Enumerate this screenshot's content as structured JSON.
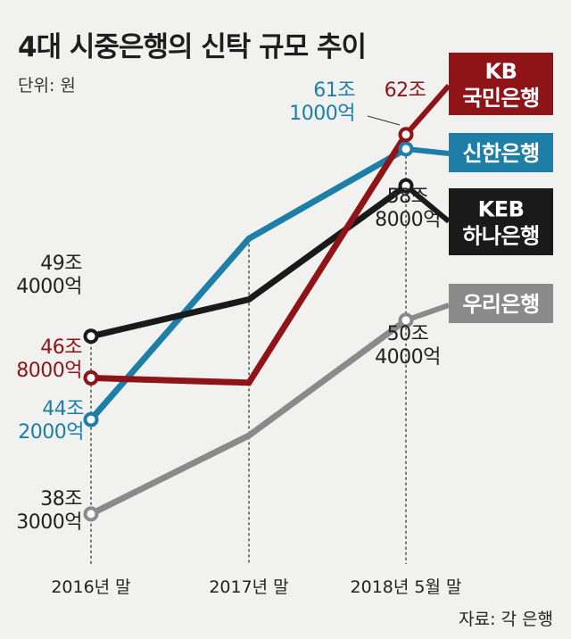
{
  "title": "4대 시중은행의 신탁 규모 추이",
  "unit_label": "단위: 원",
  "source": "자료: 각 은행",
  "chart_data": {
    "type": "line",
    "title": "4대 시중은행의 신탁 규모 추이",
    "unit": "원",
    "categories": [
      "2016년 말",
      "2017년 말",
      "2018년 5월 말"
    ],
    "ylim": [
      33,
      66
    ],
    "series": [
      {
        "name": "KB 국민은행",
        "legend_lines": [
          "KB",
          "국민은행"
        ],
        "color": "#8e1418",
        "values": [
          46.8,
          46.5,
          62.0
        ],
        "point_labels": [
          [
            "46조",
            "8000억"
          ],
          null,
          [
            "62조"
          ]
        ]
      },
      {
        "name": "신한은행",
        "legend_lines": [
          "신한은행"
        ],
        "color": "#1d7fa6",
        "values": [
          44.2,
          55.5,
          61.1
        ],
        "point_labels": [
          [
            "44조",
            "2000억"
          ],
          null,
          [
            "61조",
            "1000억"
          ]
        ]
      },
      {
        "name": "KEB 하나은행",
        "legend_lines": [
          "KEB",
          "하나은행"
        ],
        "color": "#1a1a1a",
        "values": [
          49.4,
          51.7,
          58.8
        ],
        "point_labels": [
          [
            "49조",
            "4000억"
          ],
          null,
          [
            "58조",
            "8000억"
          ]
        ]
      },
      {
        "name": "우리은행",
        "legend_lines": [
          "우리은행"
        ],
        "color": "#8a8a8a",
        "values": [
          38.3,
          43.2,
          50.4
        ],
        "point_labels": [
          [
            "38조",
            "3000억"
          ],
          null,
          [
            "50조",
            "4000억"
          ]
        ]
      }
    ]
  }
}
